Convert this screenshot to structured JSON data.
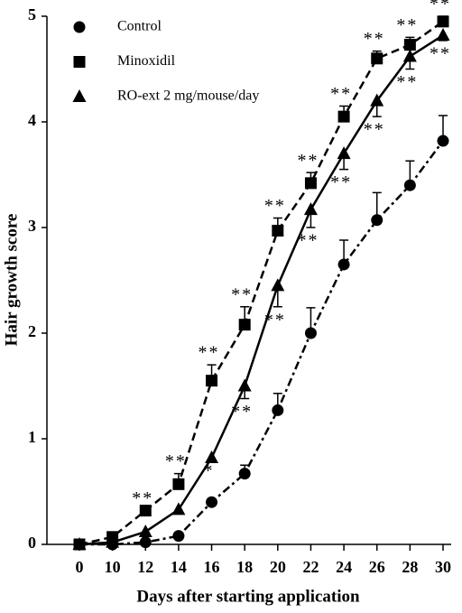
{
  "chart_data": {
    "type": "line",
    "xlabel": "Days after starting application",
    "ylabel": "Hair growth score",
    "categories": [
      "0",
      "10",
      "12",
      "14",
      "16",
      "18",
      "20",
      "22",
      "24",
      "26",
      "28",
      "30"
    ],
    "ylim": [
      0,
      5
    ],
    "yticks": [
      0,
      1,
      2,
      3,
      4,
      5
    ],
    "legend": "upper left",
    "series": [
      {
        "name": "Control",
        "color": "#000000",
        "marker": "circle",
        "dash": "dashdot",
        "error_direction": "up",
        "values": [
          0,
          0,
          0.02,
          0.08,
          0.4,
          0.67,
          1.27,
          2.0,
          2.65,
          3.07,
          3.4,
          3.82
        ],
        "errors": [
          null,
          null,
          null,
          null,
          null,
          0.08,
          0.16,
          0.24,
          0.23,
          0.26,
          0.23,
          0.24
        ],
        "significance": [
          null,
          null,
          null,
          null,
          null,
          null,
          null,
          null,
          null,
          null,
          null,
          null
        ]
      },
      {
        "name": "Minoxidil",
        "color": "#000000",
        "marker": "square",
        "dash": "dashed",
        "error_direction": "up",
        "values": [
          0,
          0.07,
          0.32,
          0.57,
          1.55,
          2.08,
          2.97,
          3.42,
          4.05,
          4.6,
          4.73,
          4.95
        ],
        "errors": [
          null,
          null,
          null,
          0.1,
          0.15,
          0.17,
          0.12,
          0.1,
          0.1,
          0.07,
          0.07,
          0.05
        ],
        "significance": [
          null,
          null,
          "**",
          "**",
          "**",
          "**",
          "**",
          "**",
          "**",
          "**",
          "**",
          "**"
        ]
      },
      {
        "name": "RO-ext 2 mg/mouse/day",
        "color": "#000000",
        "marker": "triangle",
        "dash": "solid",
        "error_direction": "down",
        "values": [
          0,
          0.02,
          0.12,
          0.33,
          0.82,
          1.5,
          2.45,
          3.17,
          3.7,
          4.2,
          4.62,
          4.82
        ],
        "errors": [
          null,
          null,
          null,
          null,
          null,
          0.12,
          0.2,
          0.17,
          0.15,
          0.15,
          0.12,
          0.05
        ],
        "significance": [
          null,
          null,
          null,
          null,
          "*",
          "**",
          "**",
          "**",
          "**",
          "**",
          "**",
          "**"
        ]
      }
    ]
  }
}
